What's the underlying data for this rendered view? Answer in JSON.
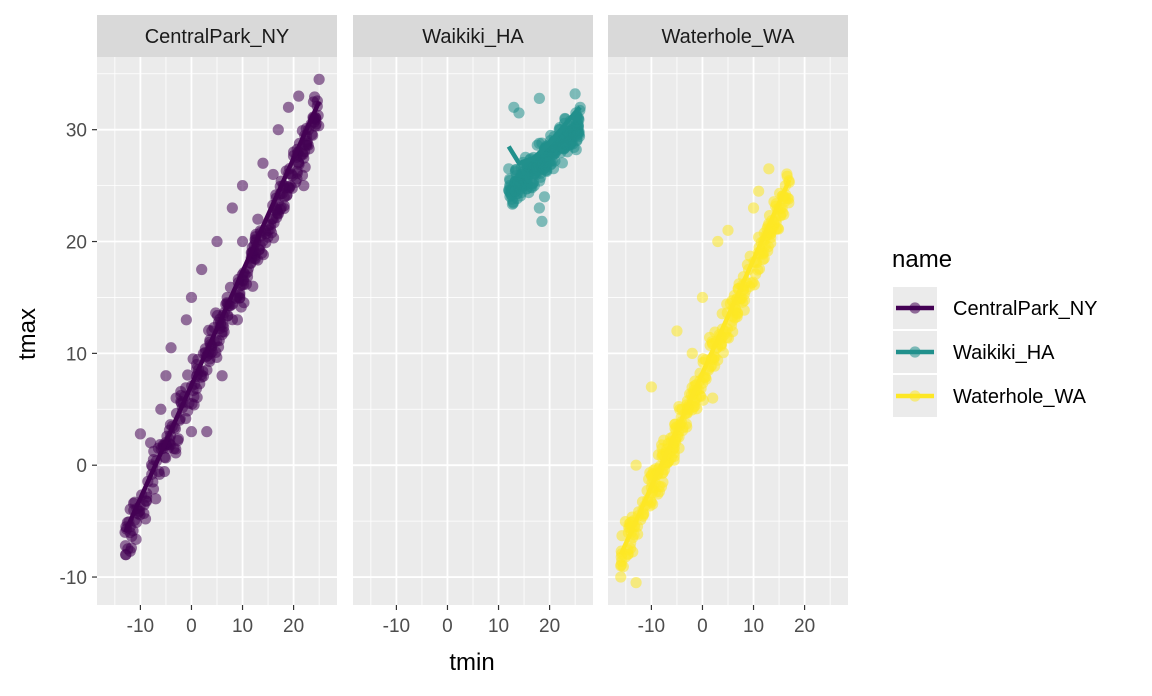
{
  "chart_data": {
    "type": "scatter",
    "facet_by": "name",
    "xlabel": "tmin",
    "ylabel": "tmax",
    "xlim": [
      -18.5,
      28.5
    ],
    "ylim": [
      -12.5,
      36.5
    ],
    "x_ticks": [
      -10,
      0,
      10,
      20
    ],
    "y_ticks": [
      -10,
      0,
      10,
      20,
      30
    ],
    "x_tick_labels": [
      "-10",
      "0",
      "10",
      "20"
    ],
    "y_tick_labels": [
      "-10",
      "0",
      "10",
      "20",
      "30"
    ],
    "grid": true,
    "panel_background": "#ebebeb",
    "strip_background": "#d9d9d9",
    "legend": {
      "title": "name",
      "position": "right"
    },
    "series": [
      {
        "name": "CentralPark_NY",
        "color": "#440154",
        "fit_line": [
          [
            -13,
            -6
          ],
          [
            25,
            32.5
          ]
        ],
        "cloud": {
          "x_range": [
            -13,
            25
          ],
          "slope": 1.0,
          "intercept": 6.5,
          "spread": 2.0,
          "min_y": -8,
          "max_y": 34.5,
          "n": 300
        },
        "points": [
          [
            -13,
            -6
          ],
          [
            -12,
            -7.7
          ],
          [
            -10,
            2.8
          ],
          [
            -8,
            2
          ],
          [
            -5,
            8
          ],
          [
            -4,
            10.5
          ],
          [
            -1,
            13
          ],
          [
            0,
            15
          ],
          [
            2,
            17.5
          ],
          [
            5,
            20
          ],
          [
            8,
            23
          ],
          [
            10,
            25
          ],
          [
            14,
            27
          ],
          [
            17,
            30
          ],
          [
            19,
            32
          ],
          [
            21,
            33
          ],
          [
            25,
            34.5
          ],
          [
            24,
            31
          ],
          [
            -12,
            -5.5
          ],
          [
            -9,
            -4.8
          ],
          [
            -7,
            -3
          ],
          [
            -6,
            5
          ],
          [
            0,
            3
          ],
          [
            3,
            3
          ],
          [
            6,
            8
          ],
          [
            9,
            13
          ],
          [
            12,
            16
          ],
          [
            15,
            21
          ],
          [
            18,
            25
          ],
          [
            22,
            25
          ],
          [
            -3,
            6
          ],
          [
            1,
            9
          ],
          [
            4,
            12
          ],
          [
            7,
            15
          ],
          [
            10,
            20
          ],
          [
            13,
            22
          ],
          [
            16,
            26
          ],
          [
            20,
            28
          ]
        ]
      },
      {
        "name": "Waikiki_HA",
        "color": "#21908c",
        "fit_line": [
          [
            12,
            28.5
          ],
          [
            14,
            27
          ],
          [
            17,
            27.5
          ],
          [
            20,
            28.8
          ],
          [
            24,
            31
          ],
          [
            26,
            32
          ]
        ],
        "cloud": {
          "x_range": [
            12,
            26
          ],
          "slope": 0.45,
          "intercept": 18.8,
          "spread": 1.5,
          "min_y": 21.8,
          "max_y": 33.2,
          "n": 300
        },
        "points": [
          [
            18.5,
            21.8
          ],
          [
            18,
            23
          ],
          [
            19,
            24
          ],
          [
            17,
            25
          ],
          [
            13,
            32
          ],
          [
            14,
            31.5
          ],
          [
            18,
            32.8
          ],
          [
            25,
            33.2
          ],
          [
            26,
            32
          ],
          [
            12,
            26.5
          ],
          [
            21,
            29
          ],
          [
            22,
            30
          ],
          [
            23,
            31
          ]
        ]
      },
      {
        "name": "Waterhole_WA",
        "color": "#fde725",
        "fit_line": [
          [
            -16,
            -8
          ],
          [
            17,
            25.5
          ]
        ],
        "cloud": {
          "x_range": [
            -16,
            17
          ],
          "slope": 1.0,
          "intercept": 7.8,
          "spread": 1.8,
          "min_y": -10.5,
          "max_y": 26.5,
          "n": 320
        },
        "points": [
          [
            -16,
            -9
          ],
          [
            -16,
            -10
          ],
          [
            -13,
            -10.5
          ],
          [
            -13,
            0
          ],
          [
            -10,
            7
          ],
          [
            -10,
            -2
          ],
          [
            -5,
            12
          ],
          [
            0,
            15
          ],
          [
            3,
            20
          ],
          [
            5,
            21
          ],
          [
            13,
            26.5
          ],
          [
            17,
            25.3
          ],
          [
            11,
            24.5
          ],
          [
            10,
            23
          ],
          [
            -2,
            10
          ],
          [
            2,
            6
          ],
          [
            6,
            14
          ],
          [
            8,
            16
          ],
          [
            -7,
            1
          ],
          [
            -4,
            5
          ]
        ]
      }
    ]
  }
}
